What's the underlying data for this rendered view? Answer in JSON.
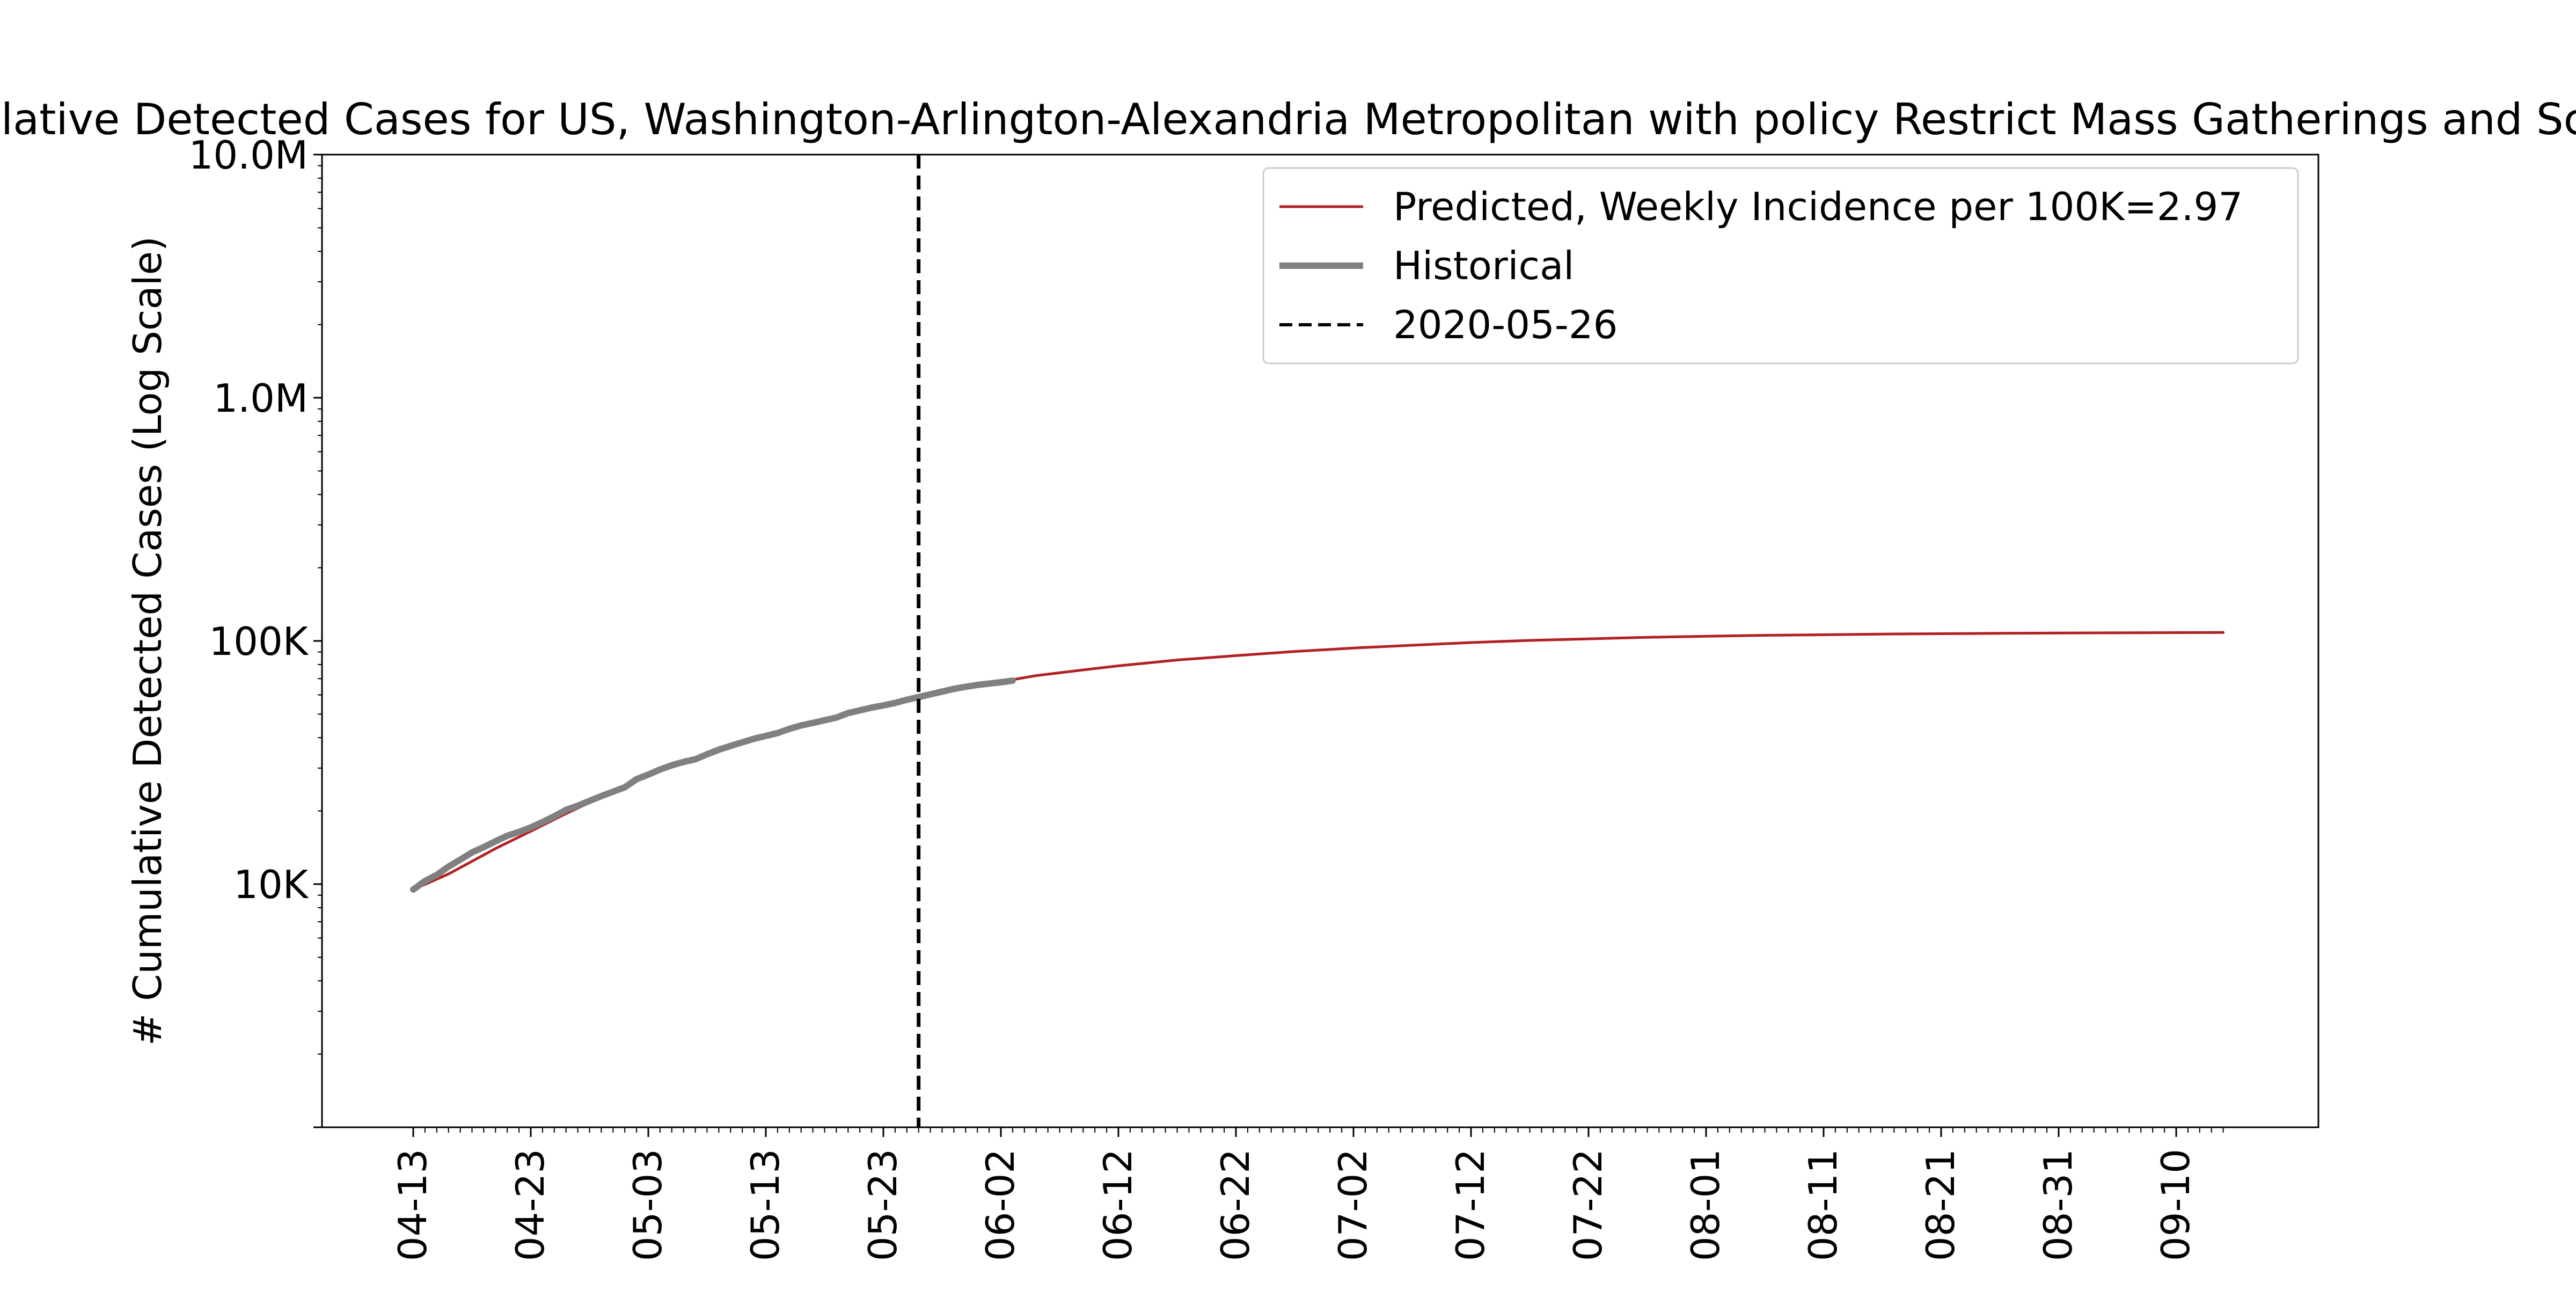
{
  "chart_data": {
    "type": "line",
    "title": "Cumulative Detected Cases for US, Washington-Arlington-Alexandria Metropolitan with policy Restrict Mass Gatherings and Schools",
    "ylabel": "# Cumulative Detected Cases (Log Scale)",
    "xlabel": "",
    "y_scale": "log",
    "ylim": [
      1000,
      10000000
    ],
    "y_ticks": [
      {
        "value": 10000,
        "label": "10K"
      },
      {
        "value": 100000,
        "label": "100K"
      },
      {
        "value": 1000000,
        "label": "1.0M"
      },
      {
        "value": 10000000,
        "label": "10.0M"
      }
    ],
    "x_ticks": [
      "04-13",
      "04-23",
      "05-03",
      "05-13",
      "05-23",
      "06-02",
      "06-12",
      "06-22",
      "07-02",
      "07-12",
      "07-22",
      "08-01",
      "08-11",
      "08-21",
      "08-31",
      "09-10"
    ],
    "grid": false,
    "legend_position": "top-right",
    "vline": {
      "date": "05-26",
      "label": "2020-05-26"
    },
    "series": [
      {
        "name": "Predicted, Weekly Incidence per 100K=2.97",
        "color": "#b22222",
        "style": "solid",
        "points": [
          [
            "04-13",
            9500
          ],
          [
            "04-16",
            11000
          ],
          [
            "04-20",
            14000
          ],
          [
            "04-23",
            16500
          ],
          [
            "04-26",
            19500
          ],
          [
            "04-30",
            24000
          ],
          [
            "05-03",
            28500
          ],
          [
            "05-06",
            32000
          ],
          [
            "05-10",
            37000
          ],
          [
            "05-13",
            41000
          ],
          [
            "05-17",
            46000
          ],
          [
            "05-20",
            50000
          ],
          [
            "05-23",
            54500
          ],
          [
            "05-26",
            58500
          ],
          [
            "05-30",
            64000
          ],
          [
            "06-02",
            68000
          ],
          [
            "06-05",
            72000
          ],
          [
            "06-09",
            76000
          ],
          [
            "06-12",
            79000
          ],
          [
            "06-17",
            83500
          ],
          [
            "06-22",
            87000
          ],
          [
            "06-27",
            90500
          ],
          [
            "07-02",
            93500
          ],
          [
            "07-07",
            96000
          ],
          [
            "07-12",
            98500
          ],
          [
            "07-17",
            100500
          ],
          [
            "07-22",
            102000
          ],
          [
            "07-27",
            103500
          ],
          [
            "08-01",
            104500
          ],
          [
            "08-06",
            105500
          ],
          [
            "08-11",
            106000
          ],
          [
            "08-16",
            106700
          ],
          [
            "08-21",
            107100
          ],
          [
            "08-26",
            107500
          ],
          [
            "08-31",
            107800
          ],
          [
            "09-05",
            108000
          ],
          [
            "09-10",
            108200
          ],
          [
            "09-14",
            108300
          ]
        ]
      },
      {
        "name": "Historical",
        "color": "#808080",
        "style": "solid",
        "points": [
          [
            "04-13",
            9500
          ],
          [
            "04-14",
            10300
          ],
          [
            "04-15",
            10900
          ],
          [
            "04-16",
            11800
          ],
          [
            "04-17",
            12600
          ],
          [
            "04-18",
            13500
          ],
          [
            "04-19",
            14200
          ],
          [
            "04-20",
            15000
          ],
          [
            "04-21",
            15800
          ],
          [
            "04-22",
            16400
          ],
          [
            "04-23",
            17100
          ],
          [
            "04-24",
            18000
          ],
          [
            "04-25",
            19000
          ],
          [
            "04-26",
            20200
          ],
          [
            "04-27",
            21000
          ],
          [
            "04-28",
            22000
          ],
          [
            "04-29",
            23000
          ],
          [
            "04-30",
            24000
          ],
          [
            "05-01",
            25000
          ],
          [
            "05-02",
            27000
          ],
          [
            "05-03",
            28200
          ],
          [
            "05-04",
            29600
          ],
          [
            "05-05",
            30800
          ],
          [
            "05-06",
            31800
          ],
          [
            "05-07",
            32600
          ],
          [
            "05-08",
            34200
          ],
          [
            "05-09",
            35700
          ],
          [
            "05-10",
            37000
          ],
          [
            "05-11",
            38300
          ],
          [
            "05-12",
            39600
          ],
          [
            "05-13",
            40700
          ],
          [
            "05-14",
            41800
          ],
          [
            "05-15",
            43500
          ],
          [
            "05-16",
            44900
          ],
          [
            "05-17",
            46000
          ],
          [
            "05-18",
            47200
          ],
          [
            "05-19",
            48400
          ],
          [
            "05-20",
            50500
          ],
          [
            "05-21",
            51800
          ],
          [
            "05-22",
            53200
          ],
          [
            "05-23",
            54300
          ],
          [
            "05-24",
            55600
          ],
          [
            "05-25",
            57300
          ],
          [
            "05-26",
            58800
          ],
          [
            "05-27",
            60300
          ],
          [
            "05-28",
            61900
          ],
          [
            "05-29",
            63500
          ],
          [
            "05-30",
            64800
          ],
          [
            "05-31",
            65900
          ],
          [
            "06-01",
            66800
          ],
          [
            "06-02",
            67600
          ],
          [
            "06-03",
            68700
          ]
        ]
      }
    ]
  }
}
